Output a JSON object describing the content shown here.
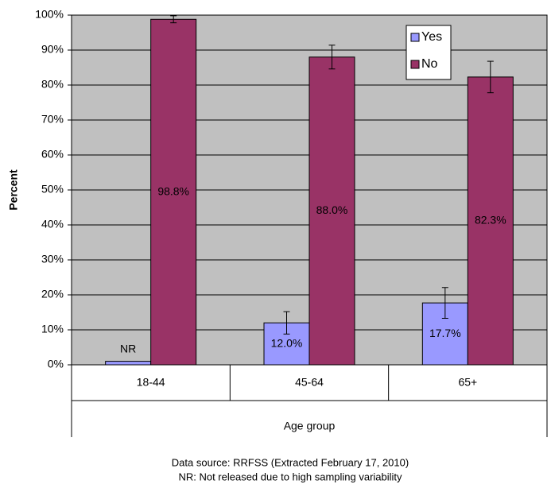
{
  "chart_data": {
    "type": "bar",
    "categories": [
      "18-44",
      "45-64",
      "65+"
    ],
    "series": [
      {
        "name": "Yes",
        "color": "#9999ff",
        "values": [
          1,
          12.0,
          17.7
        ],
        "value_labels": [
          "NR",
          "12.0%",
          "17.7%"
        ],
        "errors": [
          null,
          3.2,
          4.4
        ]
      },
      {
        "name": "No",
        "color": "#993366",
        "values": [
          98.8,
          88.0,
          82.3
        ],
        "value_labels": [
          "98.8%",
          "88.0%",
          "82.3%"
        ],
        "errors": [
          1.0,
          3.4,
          4.5
        ]
      }
    ],
    "ylim": [
      0,
      100
    ],
    "yticks": [
      {
        "value": 0,
        "label": "0%"
      },
      {
        "value": 10,
        "label": "10%"
      },
      {
        "value": 20,
        "label": "20%"
      },
      {
        "value": 30,
        "label": "30%"
      },
      {
        "value": 40,
        "label": "40%"
      },
      {
        "value": 50,
        "label": "50%"
      },
      {
        "value": 60,
        "label": "60%"
      },
      {
        "value": 70,
        "label": "70%"
      },
      {
        "value": 80,
        "label": "80%"
      },
      {
        "value": 90,
        "label": "90%"
      },
      {
        "value": 100,
        "label": "100%"
      }
    ],
    "ylabel": "Percent",
    "xlabel": "Age group",
    "notes": [
      "Data source: RRFSS (Extracted February 17, 2010)",
      "NR: Not released due to high sampling variability"
    ],
    "grid": true,
    "legend": "top-right",
    "plot_background": "#c0c0c0"
  }
}
